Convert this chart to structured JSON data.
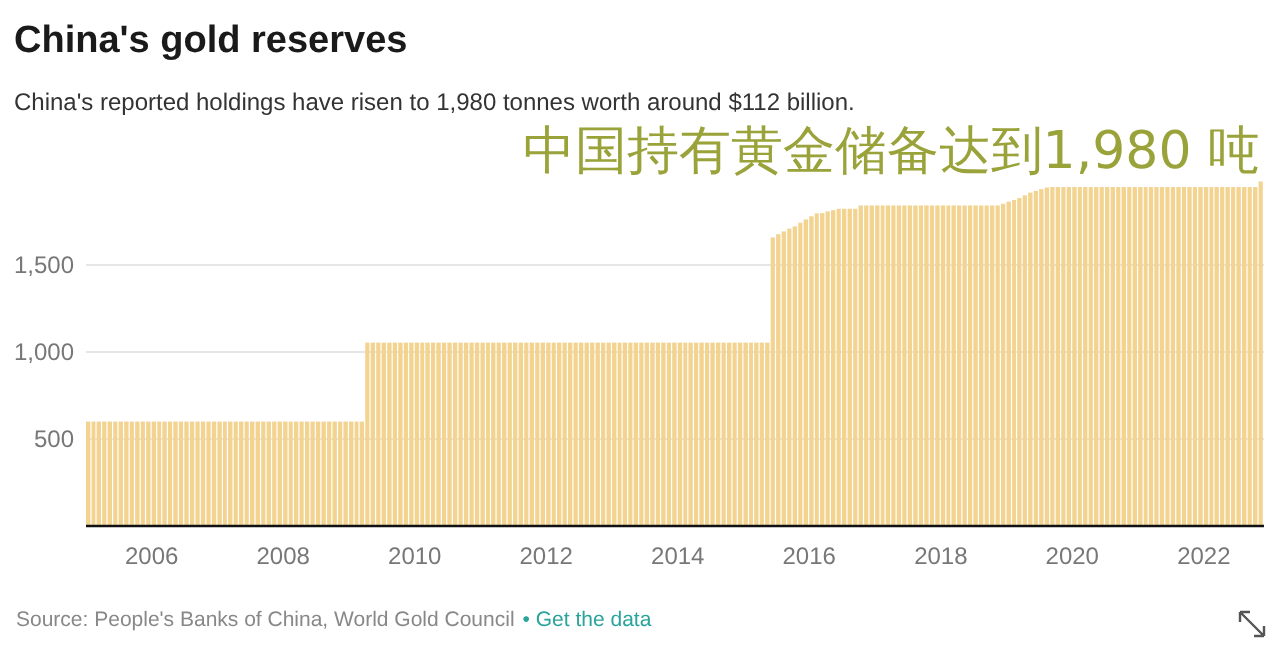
{
  "chart_data": {
    "type": "bar",
    "title": "China's gold reserves",
    "subtitle": "China's reported holdings have risen to 1,980 tonnes worth around $112 billion.",
    "annotations": [
      "中国持有黄金储备达到1,980 吨",
      "Source: People's Banks of China, World Gold Council",
      "• Get the data"
    ],
    "x": [
      "2005-01",
      "2005-02",
      "2005-03",
      "2005-04",
      "2005-05",
      "2005-06",
      "2005-07",
      "2005-08",
      "2005-09",
      "2005-10",
      "2005-11",
      "2005-12",
      "2006-01",
      "2006-02",
      "2006-03",
      "2006-04",
      "2006-05",
      "2006-06",
      "2006-07",
      "2006-08",
      "2006-09",
      "2006-10",
      "2006-11",
      "2006-12",
      "2007-01",
      "2007-02",
      "2007-03",
      "2007-04",
      "2007-05",
      "2007-06",
      "2007-07",
      "2007-08",
      "2007-09",
      "2007-10",
      "2007-11",
      "2007-12",
      "2008-01",
      "2008-02",
      "2008-03",
      "2008-04",
      "2008-05",
      "2008-06",
      "2008-07",
      "2008-08",
      "2008-09",
      "2008-10",
      "2008-11",
      "2008-12",
      "2009-01",
      "2009-02",
      "2009-03",
      "2009-04",
      "2009-05",
      "2009-06",
      "2009-07",
      "2009-08",
      "2009-09",
      "2009-10",
      "2009-11",
      "2009-12",
      "2010-01",
      "2010-02",
      "2010-03",
      "2010-04",
      "2010-05",
      "2010-06",
      "2010-07",
      "2010-08",
      "2010-09",
      "2010-10",
      "2010-11",
      "2010-12",
      "2011-01",
      "2011-02",
      "2011-03",
      "2011-04",
      "2011-05",
      "2011-06",
      "2011-07",
      "2011-08",
      "2011-09",
      "2011-10",
      "2011-11",
      "2011-12",
      "2012-01",
      "2012-02",
      "2012-03",
      "2012-04",
      "2012-05",
      "2012-06",
      "2012-07",
      "2012-08",
      "2012-09",
      "2012-10",
      "2012-11",
      "2012-12",
      "2013-01",
      "2013-02",
      "2013-03",
      "2013-04",
      "2013-05",
      "2013-06",
      "2013-07",
      "2013-08",
      "2013-09",
      "2013-10",
      "2013-11",
      "2013-12",
      "2014-01",
      "2014-02",
      "2014-03",
      "2014-04",
      "2014-05",
      "2014-06",
      "2014-07",
      "2014-08",
      "2014-09",
      "2014-10",
      "2014-11",
      "2014-12",
      "2015-01",
      "2015-02",
      "2015-03",
      "2015-04",
      "2015-05",
      "2015-06",
      "2015-07",
      "2015-08",
      "2015-09",
      "2015-10",
      "2015-11",
      "2015-12",
      "2016-01",
      "2016-02",
      "2016-03",
      "2016-04",
      "2016-05",
      "2016-06",
      "2016-07",
      "2016-08",
      "2016-09",
      "2016-10",
      "2016-11",
      "2016-12",
      "2017-01",
      "2017-02",
      "2017-03",
      "2017-04",
      "2017-05",
      "2017-06",
      "2017-07",
      "2017-08",
      "2017-09",
      "2017-10",
      "2017-11",
      "2017-12",
      "2018-01",
      "2018-02",
      "2018-03",
      "2018-04",
      "2018-05",
      "2018-06",
      "2018-07",
      "2018-08",
      "2018-09",
      "2018-10",
      "2018-11",
      "2018-12",
      "2019-01",
      "2019-02",
      "2019-03",
      "2019-04",
      "2019-05",
      "2019-06",
      "2019-07",
      "2019-08",
      "2019-09",
      "2019-10",
      "2019-11",
      "2019-12",
      "2020-01",
      "2020-02",
      "2020-03",
      "2020-04",
      "2020-05",
      "2020-06",
      "2020-07",
      "2020-08",
      "2020-09",
      "2020-10",
      "2020-11",
      "2020-12",
      "2021-01",
      "2021-02",
      "2021-03",
      "2021-04",
      "2021-05",
      "2021-06",
      "2021-07",
      "2021-08",
      "2021-09",
      "2021-10",
      "2021-11",
      "2021-12",
      "2022-01",
      "2022-02",
      "2022-03",
      "2022-04",
      "2022-05",
      "2022-06",
      "2022-07",
      "2022-08",
      "2022-09",
      "2022-10",
      "2022-11"
    ],
    "values": [
      600,
      600,
      600,
      600,
      600,
      600,
      600,
      600,
      600,
      600,
      600,
      600,
      600,
      600,
      600,
      600,
      600,
      600,
      600,
      600,
      600,
      600,
      600,
      600,
      600,
      600,
      600,
      600,
      600,
      600,
      600,
      600,
      600,
      600,
      600,
      600,
      600,
      600,
      600,
      600,
      600,
      600,
      600,
      600,
      600,
      600,
      600,
      600,
      600,
      600,
      600,
      1054,
      1054,
      1054,
      1054,
      1054,
      1054,
      1054,
      1054,
      1054,
      1054,
      1054,
      1054,
      1054,
      1054,
      1054,
      1054,
      1054,
      1054,
      1054,
      1054,
      1054,
      1054,
      1054,
      1054,
      1054,
      1054,
      1054,
      1054,
      1054,
      1054,
      1054,
      1054,
      1054,
      1054,
      1054,
      1054,
      1054,
      1054,
      1054,
      1054,
      1054,
      1054,
      1054,
      1054,
      1054,
      1054,
      1054,
      1054,
      1054,
      1054,
      1054,
      1054,
      1054,
      1054,
      1054,
      1054,
      1054,
      1054,
      1054,
      1054,
      1054,
      1054,
      1054,
      1054,
      1054,
      1054,
      1054,
      1054,
      1054,
      1054,
      1054,
      1054,
      1054,
      1054,
      1658,
      1677,
      1693,
      1709,
      1722,
      1743,
      1762,
      1780,
      1797,
      1798,
      1808,
      1815,
      1823,
      1823,
      1823,
      1823,
      1842,
      1842,
      1842,
      1842,
      1842,
      1842,
      1842,
      1842,
      1842,
      1842,
      1842,
      1842,
      1842,
      1842,
      1842,
      1842,
      1842,
      1842,
      1842,
      1842,
      1842,
      1842,
      1842,
      1842,
      1842,
      1842,
      1852,
      1864,
      1874,
      1885,
      1900,
      1916,
      1926,
      1936,
      1945,
      1948,
      1948,
      1948,
      1948,
      1948,
      1948,
      1948,
      1948,
      1948,
      1948,
      1948,
      1948,
      1948,
      1948,
      1948,
      1948,
      1948,
      1948,
      1948,
      1948,
      1948,
      1948,
      1948,
      1948,
      1948,
      1948,
      1948,
      1948,
      1948,
      1948,
      1948,
      1948,
      1948,
      1948,
      1948,
      1948,
      1948,
      1948,
      1980
    ],
    "color": "#f3d390",
    "ylim": [
      0,
      2000
    ],
    "yticks": [
      {
        "value": 0,
        "label": null
      },
      500,
      {
        "value": 1000,
        "label": "1,000"
      },
      {
        "value": 1500,
        "label": "1,500"
      }
    ],
    "xlim": [
      "2005-01",
      "2022-12"
    ],
    "xticks": [
      "2006",
      "2008",
      "2010",
      "2012",
      "2014",
      "2016",
      "2018",
      "2020",
      "2022"
    ],
    "grid": "y"
  }
}
